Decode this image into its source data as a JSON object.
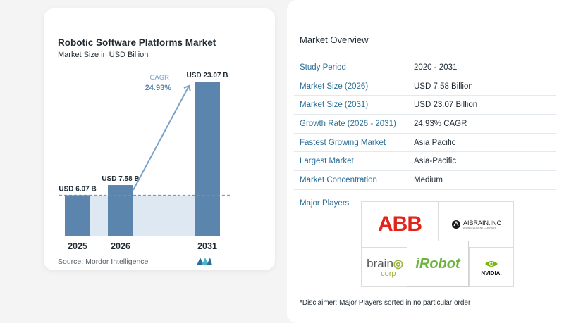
{
  "chart_data": {
    "type": "bar",
    "title": "Robotic Software Platforms Market",
    "subtitle": "Market Size in USD Billion",
    "categories": [
      "2025",
      "2026",
      "2031"
    ],
    "values": [
      6.07,
      7.58,
      23.07
    ],
    "value_labels": [
      "USD 6.07 B",
      "USD 7.58 B",
      "USD 23.07 B"
    ],
    "cagr_label": "CAGR",
    "cagr_value": "24.93%",
    "bar_color": "#5b85ad",
    "baseline_fill": "#dde8f2",
    "ylim": [
      0,
      25
    ]
  },
  "source": "Source:  Mordor Intelligence",
  "overview": {
    "title": "Market Overview",
    "rows": [
      {
        "key": "Study Period",
        "value": "2020 - 2031"
      },
      {
        "key": "Market Size (2026)",
        "value": "USD 7.58 Billion"
      },
      {
        "key": "Market Size (2031)",
        "value": "USD 23.07 Billion"
      },
      {
        "key": "Growth Rate (2026 - 2031)",
        "value": "24.93% CAGR"
      },
      {
        "key": "Fastest Growing Market",
        "value": "Asia Pacific"
      },
      {
        "key": "Largest Market",
        "value": "Asia-Pacific"
      },
      {
        "key": "Market Concentration",
        "value": "Medium"
      }
    ],
    "players_label": "Major Players",
    "players": {
      "abb": "ABB",
      "aibrain": "AIBRAIN.INC",
      "aibrain_sub": "AN INTELLIGENT COMPANY",
      "brain_prefix": "brain",
      "brain_suffix": "corp",
      "irobot": "iRobot",
      "nvidia": "NVIDIA."
    },
    "disclaimer": "*Disclaimer: Major Players sorted in no particular order"
  },
  "colors": {
    "accent_text": "#2a6f98",
    "abb_red": "#e2231a",
    "irobot_green": "#6ab43e",
    "nvidia_green": "#76b900"
  }
}
